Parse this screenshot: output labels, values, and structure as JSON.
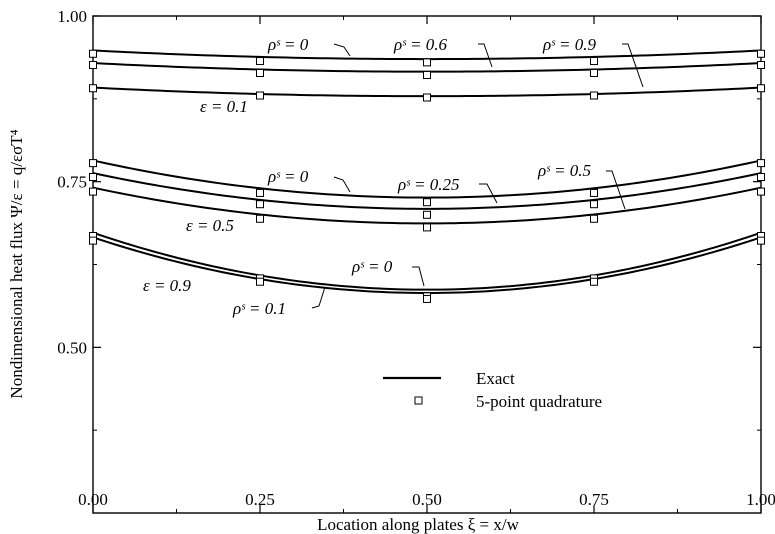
{
  "chart_data": {
    "type": "line",
    "xlabel": "Location along plates  ξ = x/w",
    "ylabel": "Nondimensional heat flux  Ψ/ε = q/εσT⁴",
    "xlim": [
      0,
      1
    ],
    "ylim": [
      0.25,
      1.0
    ],
    "x_ticks": [
      "0.00",
      "0.25",
      "0.50",
      "0.75",
      "1.00"
    ],
    "y_ticks": [
      "0.50",
      "0.75",
      "1.00"
    ],
    "grid": false,
    "legend": {
      "position": "lower-right",
      "entries": [
        {
          "label": "Exact",
          "marker": "line"
        },
        {
          "label": "5-point quadrature",
          "marker": "square"
        }
      ]
    },
    "x": [
      0,
      0.25,
      0.5,
      0.75,
      1.0
    ],
    "series": [
      {
        "group": "ε = 0.1",
        "rho": "ρˢ = 0",
        "exact": [
          0.948,
          0.938,
          0.935,
          0.938,
          0.948
        ],
        "quadrature": [
          0.943,
          0.932,
          0.93,
          0.932,
          0.943
        ]
      },
      {
        "group": "ε = 0.1",
        "rho": "ρˢ = 0.6",
        "exact": [
          0.929,
          0.919,
          0.916,
          0.919,
          0.929
        ],
        "quadrature": [
          0.926,
          0.914,
          0.911,
          0.914,
          0.926
        ]
      },
      {
        "group": "ε = 0.1",
        "rho": "ρˢ = 0.9",
        "exact": [
          0.892,
          0.882,
          0.879,
          0.882,
          0.892
        ],
        "quadrature": [
          0.891,
          0.88,
          0.877,
          0.88,
          0.891
        ]
      },
      {
        "group": "ε = 0.5",
        "rho": "ρˢ = 0",
        "exact": [
          0.782,
          0.738,
          0.726,
          0.738,
          0.782
        ],
        "quadrature": [
          0.778,
          0.733,
          0.719,
          0.733,
          0.778
        ]
      },
      {
        "group": "ε = 0.5",
        "rho": "ρˢ = 0.25",
        "exact": [
          0.763,
          0.721,
          0.709,
          0.721,
          0.763
        ],
        "quadrature": [
          0.757,
          0.716,
          0.7,
          0.716,
          0.757
        ]
      },
      {
        "group": "ε = 0.5",
        "rho": "ρˢ = 0.5",
        "exact": [
          0.741,
          0.7,
          0.687,
          0.7,
          0.741
        ],
        "quadrature": [
          0.735,
          0.694,
          0.681,
          0.694,
          0.735
        ]
      },
      {
        "group": "ε = 0.9",
        "rho": "ρˢ = 0",
        "exact": [
          0.673,
          0.612,
          0.587,
          0.612,
          0.673
        ],
        "quadrature": [
          0.668,
          0.604,
          0.577,
          0.604,
          0.668
        ]
      },
      {
        "group": "ε = 0.9",
        "rho": "ρˢ = 0.1",
        "exact": [
          0.666,
          0.606,
          0.582,
          0.606,
          0.666
        ],
        "quadrature": [
          0.661,
          0.599,
          0.573,
          0.599,
          0.661
        ]
      }
    ],
    "annotations": {
      "eps_01": "ε = 0.1",
      "eps_05": "ε = 0.5",
      "eps_09": "ε = 0.9",
      "g1_rho0": "ρˢ = 0",
      "g1_rho06": "ρˢ = 0.6",
      "g1_rho09": "ρˢ = 0.9",
      "g2_rho0": "ρˢ = 0",
      "g2_rho025": "ρˢ = 0.25",
      "g2_rho05": "ρˢ = 0.5",
      "g3_rho0": "ρˢ = 0",
      "g3_rho01": "ρˢ = 0.1"
    }
  }
}
